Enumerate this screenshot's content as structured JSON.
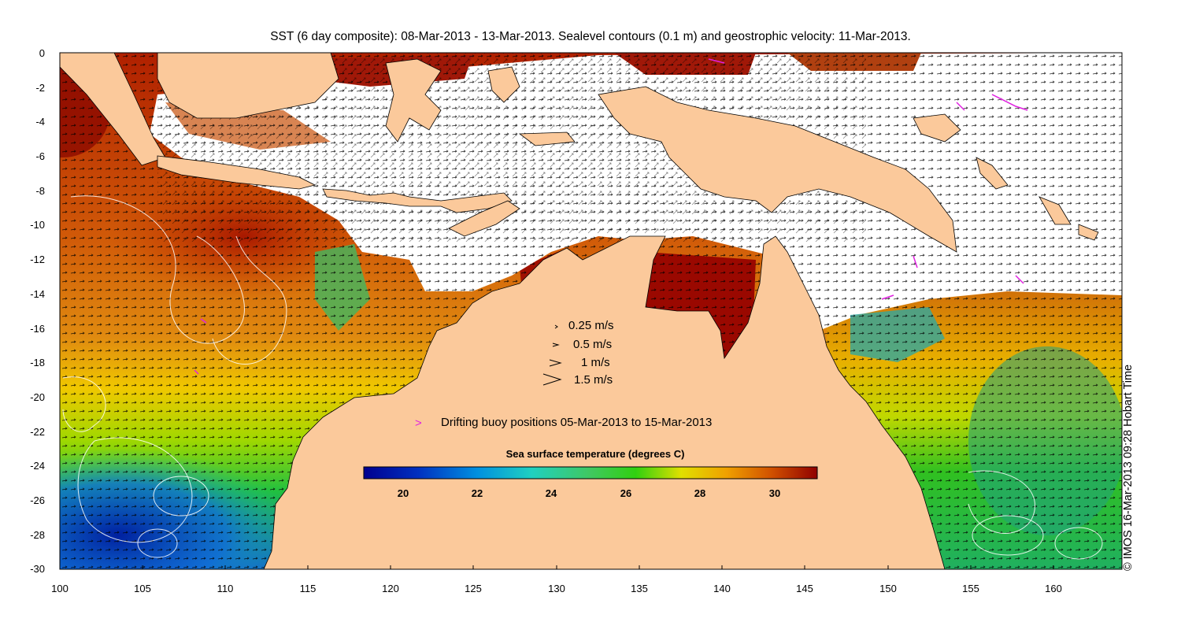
{
  "title": "SST (6 day composite): 08-Mar-2013 - 13-Mar-2013. Sealevel contours (0.1 m) and geostrophic velocity: 11-Mar-2013.",
  "copyright": "© IMOS 16-Mar-2013 09:28 Hobart Time",
  "axes": {
    "x_ticks": [
      "100",
      "105",
      "110",
      "115",
      "120",
      "125",
      "130",
      "135",
      "140",
      "145",
      "150",
      "155",
      "160"
    ],
    "y_ticks": [
      "0",
      "-2",
      "-4",
      "-6",
      "-8",
      "-10",
      "-12",
      "-14",
      "-16",
      "-18",
      "-20",
      "-22",
      "-24",
      "-26",
      "-28",
      "-30"
    ],
    "xlim": [
      100,
      164
    ],
    "ylim": [
      -30,
      0
    ]
  },
  "velocity_legend": [
    {
      "label": "0.25 m/s",
      "speed": 0.25
    },
    {
      "label": "0.5 m/s",
      "speed": 0.5
    },
    {
      "label": "1 m/s",
      "speed": 1
    },
    {
      "label": "1.5 m/s",
      "speed": 1.5
    }
  ],
  "buoy_legend": {
    "symbol": ">",
    "label": "Drifting buoy positions 05-Mar-2013 to 15-Mar-2013",
    "color": "#e020e0"
  },
  "colorbar": {
    "title": "Sea surface temperature (degrees C)",
    "ticks": [
      "20",
      "22",
      "24",
      "26",
      "28",
      "30"
    ],
    "range": [
      19,
      31.3
    ]
  },
  "colors": {
    "land": "#fbc99b",
    "cloud": "#ffffff",
    "buoy": "#e020e0"
  }
}
